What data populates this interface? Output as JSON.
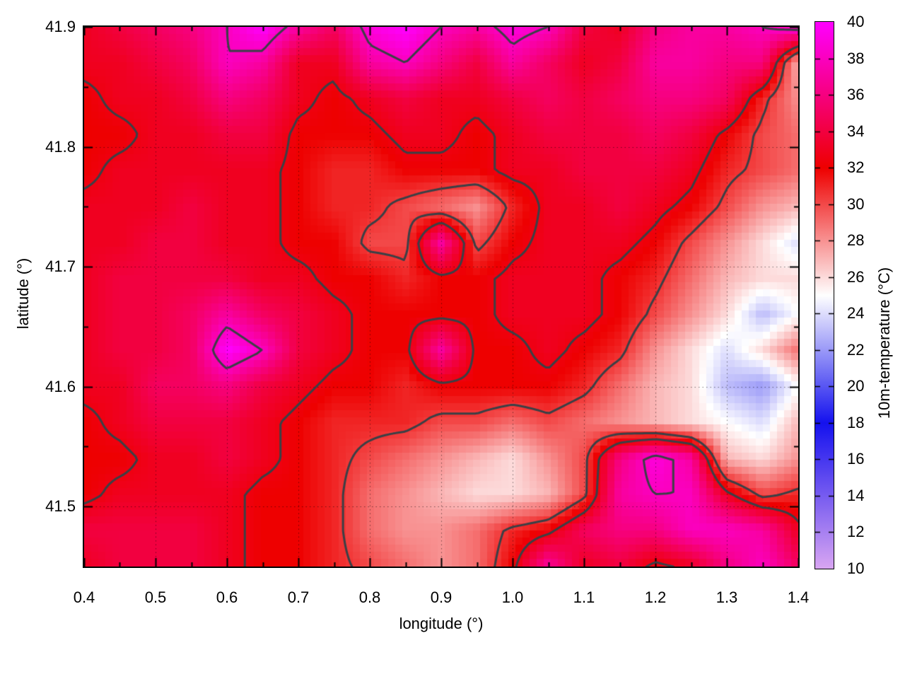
{
  "page": {
    "background": "#ffffff"
  },
  "chart_data": {
    "type": "heatmap",
    "title": "",
    "xlabel": "longitude (°)",
    "ylabel": "latitude (°)",
    "colorbar_label": "10m-temperature (°C)",
    "x_range": [
      0.4,
      1.4
    ],
    "y_range": [
      41.45,
      41.9
    ],
    "z_range": [
      10,
      40
    ],
    "grid_on": true,
    "x_tick_values": [
      0.4,
      0.5,
      0.6,
      0.7,
      0.8,
      0.9,
      1.0,
      1.1,
      1.2,
      1.3,
      1.4
    ],
    "x_tick_labels": [
      "0.4",
      "0.5",
      "0.6",
      "0.7",
      "0.8",
      "0.9",
      "1.0",
      "1.1",
      "1.2",
      "1.3",
      "1.4"
    ],
    "x_minor_ticks": [
      0.45,
      0.55,
      0.65,
      0.75,
      0.85,
      0.95,
      1.05,
      1.15,
      1.25,
      1.35
    ],
    "y_tick_values": [
      41.9,
      41.8,
      41.7,
      41.6,
      41.5
    ],
    "y_tick_labels": [
      "41.9",
      "41.8",
      "41.7",
      "41.6",
      "41.5"
    ],
    "y_minor_ticks": [
      41.85,
      41.75,
      41.65,
      41.55
    ],
    "colorbar_tick_values": [
      40,
      38,
      36,
      34,
      32,
      30,
      28,
      26,
      24,
      22,
      20,
      18,
      16,
      14,
      12,
      10
    ],
    "colorbar_tick_labels": [
      "40",
      "38",
      "36",
      "34",
      "32",
      "30",
      "28",
      "26",
      "24",
      "22",
      "20",
      "18",
      "16",
      "14",
      "12",
      "10"
    ],
    "palette_stops": [
      {
        "value": 10,
        "color": "#d9a6f2"
      },
      {
        "value": 18,
        "color": "#1512ee"
      },
      {
        "value": 25,
        "color": "#ffffff"
      },
      {
        "value": 32,
        "color": "#ee0000"
      },
      {
        "value": 40,
        "color": "#ff00ff"
      }
    ],
    "contour_levels": [
      30.5,
      32.5,
      38
    ],
    "contour_color": "#3b4046",
    "grid_line_color": "rgba(0,0,0,0.5)",
    "lon": [
      0.4,
      0.45,
      0.5,
      0.55,
      0.6,
      0.65,
      0.7,
      0.75,
      0.8,
      0.85,
      0.9,
      0.95,
      1.0,
      1.05,
      1.1,
      1.15,
      1.2,
      1.25,
      1.3,
      1.35,
      1.4
    ],
    "lat": [
      41.9,
      41.87,
      41.84,
      41.81,
      41.78,
      41.75,
      41.72,
      41.69,
      41.66,
      41.63,
      41.6,
      41.57,
      41.54,
      41.51,
      41.48,
      41.45
    ],
    "values": [
      [
        33,
        34,
        35,
        36,
        38,
        40,
        37,
        35,
        39,
        40,
        38,
        37,
        39,
        38,
        34,
        33,
        36,
        37,
        37,
        38,
        39
      ],
      [
        33,
        33,
        34,
        35,
        38,
        37,
        33,
        33,
        37,
        38,
        36,
        34,
        37,
        35,
        33,
        34,
        37,
        37,
        36,
        36,
        27
      ],
      [
        32,
        33,
        33,
        34,
        36,
        35,
        33,
        32,
        33,
        34,
        33,
        33,
        34,
        35,
        34,
        35,
        36,
        36,
        35,
        31,
        28
      ],
      [
        32,
        32,
        33,
        33,
        34,
        34,
        32,
        32,
        32,
        33,
        33,
        32,
        33,
        34,
        34,
        34,
        35,
        34,
        32,
        30,
        29
      ],
      [
        32,
        33,
        33,
        33,
        33,
        33,
        32,
        31,
        31,
        32,
        32,
        32,
        33,
        33,
        34,
        34,
        34,
        33,
        31,
        30,
        29
      ],
      [
        33,
        33,
        33,
        34,
        33,
        33,
        32,
        31,
        31,
        30,
        29,
        28,
        31,
        33,
        33,
        34,
        33,
        32,
        30,
        28,
        27
      ],
      [
        33,
        33,
        34,
        34,
        33,
        33,
        32,
        32,
        30,
        30,
        37,
        30,
        32,
        33,
        33,
        33,
        32,
        30,
        28,
        26,
        24
      ],
      [
        33,
        34,
        34,
        34,
        34,
        33,
        33,
        32,
        32,
        31,
        32,
        32,
        33,
        33,
        33,
        32,
        31,
        29,
        27,
        26,
        26
      ],
      [
        33,
        34,
        34,
        35,
        37,
        35,
        34,
        33,
        32,
        32,
        32,
        32,
        33,
        33,
        33,
        32,
        30,
        28,
        26,
        23,
        25
      ],
      [
        33,
        34,
        34,
        35,
        40,
        38,
        34,
        33,
        32,
        32,
        37,
        32,
        32,
        33,
        32,
        31,
        28,
        26,
        24,
        26,
        29
      ],
      [
        33,
        33,
        35,
        35,
        36,
        34,
        33,
        32,
        32,
        31,
        32,
        32,
        32,
        32,
        31,
        29,
        27,
        26,
        23,
        22,
        25
      ],
      [
        32,
        33,
        34,
        34,
        34,
        33,
        32,
        31,
        31,
        31,
        30,
        30,
        29,
        30,
        29,
        28,
        27,
        26,
        25,
        24,
        27
      ],
      [
        32,
        32,
        33,
        33,
        34,
        33,
        32,
        31,
        30,
        29,
        28,
        27,
        26,
        28,
        30,
        36,
        39,
        37,
        27,
        26,
        28
      ],
      [
        32,
        33,
        33,
        33,
        33,
        32,
        32,
        31,
        29,
        28,
        27,
        26,
        26,
        27,
        30,
        37,
        38,
        38,
        33,
        30,
        31
      ],
      [
        34,
        34,
        34,
        34,
        33,
        32,
        32,
        31,
        29,
        28,
        28,
        29,
        31,
        32,
        35,
        36,
        36,
        38,
        38,
        37,
        33
      ],
      [
        33,
        34,
        34,
        34,
        33,
        32,
        32,
        31,
        30,
        29,
        28,
        29,
        32,
        37,
        33,
        34,
        32,
        33,
        36,
        38,
        35
      ]
    ]
  }
}
